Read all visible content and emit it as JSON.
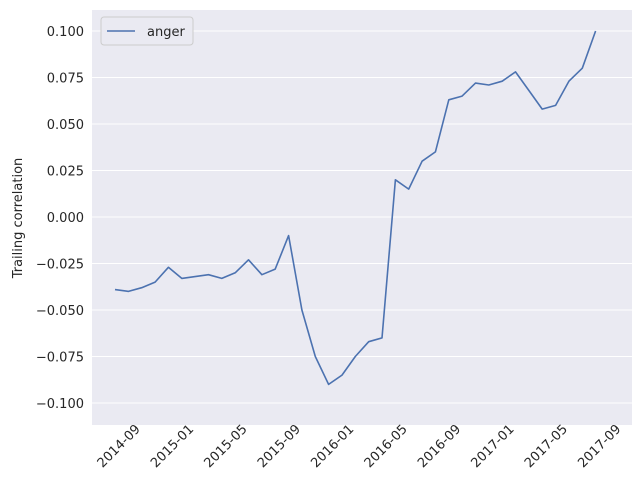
{
  "chart_data": {
    "type": "line",
    "ylabel": "Trailing correlation",
    "x": [
      "2014-08",
      "2014-09",
      "2014-10",
      "2014-11",
      "2014-12",
      "2015-01",
      "2015-02",
      "2015-03",
      "2015-04",
      "2015-05",
      "2015-06",
      "2015-07",
      "2015-08",
      "2015-09",
      "2015-10",
      "2015-11",
      "2015-12",
      "2016-01",
      "2016-02",
      "2016-03",
      "2016-04",
      "2016-05",
      "2016-06",
      "2016-07",
      "2016-08",
      "2016-09",
      "2016-10",
      "2016-11",
      "2016-12",
      "2017-01",
      "2017-02",
      "2017-03",
      "2017-04",
      "2017-05",
      "2017-06",
      "2017-07",
      "2017-08"
    ],
    "series": [
      {
        "name": "anger",
        "color": "#4c72b0",
        "values": [
          -0.039,
          -0.04,
          -0.038,
          -0.035,
          -0.027,
          -0.033,
          -0.032,
          -0.031,
          -0.033,
          -0.03,
          -0.023,
          -0.031,
          -0.028,
          -0.01,
          -0.05,
          -0.075,
          -0.09,
          -0.085,
          -0.075,
          -0.067,
          -0.065,
          0.02,
          0.015,
          0.03,
          0.035,
          0.063,
          0.065,
          0.072,
          0.071,
          0.073,
          0.078,
          0.068,
          0.058,
          0.06,
          0.073,
          0.08,
          0.1
        ]
      }
    ],
    "xlim": [
      "2014-07",
      "2017-11"
    ],
    "xticks": [
      "2014-09",
      "2015-01",
      "2015-05",
      "2015-09",
      "2016-01",
      "2016-05",
      "2016-09",
      "2017-01",
      "2017-05",
      "2017-09"
    ],
    "ylim": [
      -0.1118,
      0.1113
    ],
    "yticks": [
      {
        "value": -0.1,
        "label": "−0.100"
      },
      {
        "value": -0.075,
        "label": "−0.075"
      },
      {
        "value": -0.05,
        "label": "−0.050"
      },
      {
        "value": -0.025,
        "label": "−0.025"
      },
      {
        "value": 0,
        "label": "0.000"
      },
      {
        "value": 0.025,
        "label": "0.025"
      },
      {
        "value": 0.05,
        "label": "0.050"
      },
      {
        "value": 0.075,
        "label": "0.075"
      },
      {
        "value": 0.1,
        "label": "0.100"
      }
    ],
    "grid": "y",
    "legend": "upper left",
    "background": "#eaeaf2"
  }
}
